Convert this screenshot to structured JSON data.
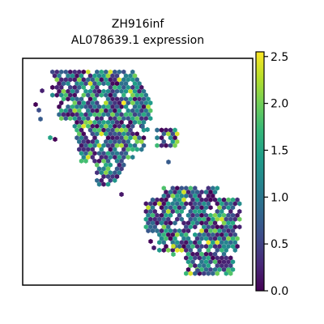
{
  "chart_data": {
    "type": "scatter",
    "title_line1": "ZH916inf",
    "title_line2": "AL078639.1 expression",
    "xlabel": "",
    "ylabel": "",
    "grid": false,
    "legend": "none",
    "colorbar": {
      "min": 0.0,
      "max": 2.55,
      "ticks": [
        "0.0",
        "0.5",
        "1.0",
        "1.5",
        "2.0",
        "2.5"
      ],
      "tick_values": [
        0.0,
        0.5,
        1.0,
        1.5,
        2.0,
        2.5
      ],
      "colormap": "viridis",
      "colors": [
        "#440154",
        "#482878",
        "#3e4a89",
        "#31688e",
        "#26828e",
        "#1f9e89",
        "#35b779",
        "#6ece58",
        "#b5de2b",
        "#fde725"
      ]
    },
    "note": "spatial transcriptomics spots shown as hexagonal tiles; two tissue clusters (upper-left, lower-right) with a small isolated group in the middle",
    "clusters": [
      {
        "name": "upper-left",
        "x_range": [
          0.04,
          0.56
        ],
        "y_range": [
          0.4,
          0.94
        ],
        "mean_value": 0.9
      },
      {
        "name": "middle-small",
        "x_range": [
          0.58,
          0.67
        ],
        "y_range": [
          0.62,
          0.7
        ],
        "mean_value": 0.8
      },
      {
        "name": "lower-right",
        "x_range": [
          0.52,
          0.95
        ],
        "y_range": [
          0.05,
          0.45
        ],
        "mean_value": 0.9
      }
    ]
  }
}
